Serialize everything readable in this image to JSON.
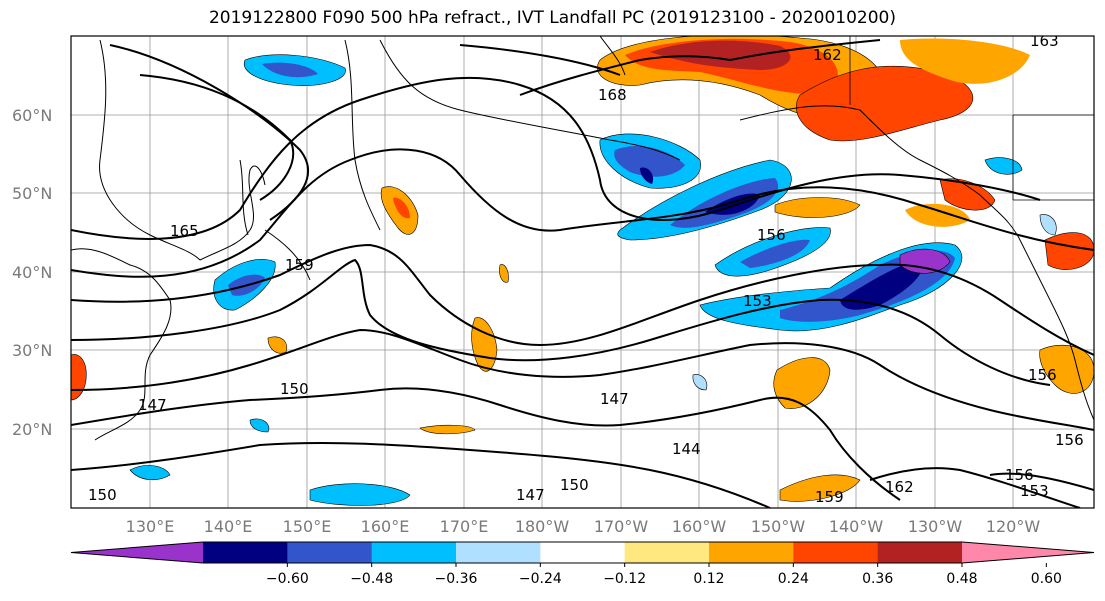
{
  "title": "2019122800 F090 500 hPa refract., IVT Landfall PC (2019123100 - 2020010200)",
  "lat_labels": [
    "60°N",
    "50°N",
    "40°N",
    "30°N",
    "20°N"
  ],
  "lon_labels": [
    "130°E",
    "140°E",
    "150°E",
    "160°E",
    "170°E",
    "180°W",
    "170°W",
    "160°W",
    "150°W",
    "140°W",
    "130°W",
    "120°W"
  ],
  "contour_labels": [
    "165",
    "159",
    "162",
    "156",
    "153",
    "150",
    "147",
    "144",
    "159",
    "162",
    "153",
    "156",
    "147",
    "150",
    "150",
    "156",
    "168",
    "163",
    "147",
    "156"
  ],
  "colorbar": {
    "colors": [
      "#9933cc",
      "#000080",
      "#3355cc",
      "#00bfff",
      "#b0e0ff",
      "#ffffff",
      "#ffe880",
      "#ffa500",
      "#ff4500",
      "#b22222",
      "#ff88aa"
    ],
    "tick_labels": [
      "−0.60",
      "−0.48",
      "−0.36",
      "−0.24",
      "−0.12",
      "0.12",
      "0.24",
      "0.36",
      "0.48",
      "0.60"
    ]
  }
}
